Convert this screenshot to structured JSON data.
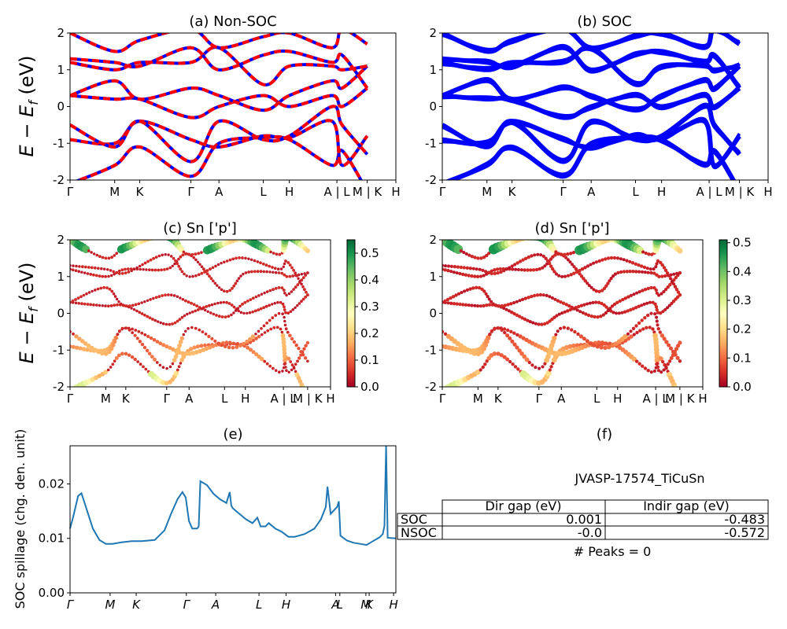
{
  "panels": {
    "a": {
      "title": "(a) Non-SOC",
      "ylabel": "E − E",
      "ylabel_sub": "f",
      "ylabel_unit": " (eV)"
    },
    "b": {
      "title": "(b) SOC"
    },
    "c": {
      "title": "(c)  Sn ['p']",
      "ylabel": "E − E",
      "ylabel_sub": "f",
      "ylabel_unit": " (eV)"
    },
    "d": {
      "title": "(d) Sn ['p']"
    },
    "e": {
      "title": "(e)",
      "ylabel": "SOC spillage (chg. den. unit)"
    },
    "f": {
      "title": "(f)"
    }
  },
  "kpath_labels": [
    "Γ",
    "M",
    "K",
    "Γ",
    "A",
    "L",
    "H",
    "A",
    "L",
    "M",
    "K",
    "H"
  ],
  "kpath_display": [
    "Γ",
    "M",
    "K",
    "Γ",
    "A",
    "L",
    "H",
    "A | L",
    "M | K",
    "H"
  ],
  "kpath_display_c": [
    "Γ",
    "M",
    "K",
    "Γ",
    "A",
    "L",
    "H",
    "A | L",
    "M | K",
    "H"
  ],
  "table": {
    "material": "JVASP-17574_TiCuSn",
    "headers": [
      "Dir gap (eV)",
      "Indir gap (eV)"
    ],
    "rows": [
      {
        "label": "SOC",
        "dir": "0.001",
        "indir": "-0.483"
      },
      {
        "label": "NSOC",
        "dir": "-0.0",
        "indir": "-0.572"
      }
    ],
    "peaks": "# Peaks = 0"
  },
  "colors": {
    "nonsoc_red": "#ff0000",
    "nonsoc_blue": "#0000ff",
    "soc_blue": "#0000ff",
    "spillage_line": "#1f77b4"
  },
  "chart_data": [
    {
      "type": "line",
      "panel": "a",
      "title": "(a) Non-SOC",
      "ylabel": "E − E_f (eV)",
      "ylim": [
        -2,
        2
      ],
      "yticks": [
        -2,
        -1,
        0,
        1,
        2
      ],
      "x_ticks": [
        "Γ",
        "M",
        "K",
        "Γ",
        "A",
        "L",
        "H",
        "A | L",
        "M | K",
        "H"
      ],
      "series": [
        {
          "values": [
            -2.1,
            -1.6,
            -1.1,
            -1.9,
            -1.0,
            -0.85,
            -0.9,
            -1.6,
            -1.2,
            -2.3
          ]
        },
        {
          "values": [
            -0.9,
            -1.0,
            -0.4,
            -0.9,
            -1.1,
            -0.8,
            -0.85,
            -0.4,
            -1.6,
            -0.8
          ]
        },
        {
          "values": [
            -0.5,
            -1.1,
            -0.4,
            -1.5,
            -0.4,
            -0.9,
            -0.8,
            0.0,
            -0.5,
            -1.3
          ]
        },
        {
          "values": [
            0.3,
            0.2,
            0.2,
            -0.3,
            0.0,
            0.3,
            0.0,
            0.3,
            0.0,
            0.5
          ]
        },
        {
          "values": [
            0.3,
            0.7,
            0.2,
            0.5,
            0.3,
            -0.1,
            0.3,
            0.7,
            0.5,
            1.1
          ]
        },
        {
          "values": [
            1.2,
            1.0,
            1.2,
            1.2,
            1.6,
            0.6,
            1.1,
            1.1,
            1.0,
            1.1
          ]
        },
        {
          "values": [
            1.3,
            1.2,
            1.1,
            1.6,
            1.0,
            1.4,
            1.5,
            1.2,
            1.4,
            0.5
          ]
        },
        {
          "values": [
            2.0,
            1.5,
            1.8,
            2.1,
            1.6,
            1.9,
            2.0,
            1.6,
            2.1,
            1.7
          ]
        }
      ]
    },
    {
      "type": "line",
      "panel": "b",
      "title": "(b) SOC",
      "ylim": [
        -2,
        2
      ],
      "yticks": [
        -2,
        -1,
        0,
        1,
        2
      ],
      "x_ticks": [
        "Γ",
        "M",
        "K",
        "Γ",
        "A",
        "L",
        "H",
        "A | L",
        "M | K",
        "H"
      ],
      "series": [
        {
          "values": [
            -2.1,
            -1.6,
            -1.1,
            -1.9,
            -1.0,
            -0.85,
            -0.9,
            -1.6,
            -1.2,
            -2.3
          ]
        },
        {
          "values": [
            -0.9,
            -1.0,
            -0.4,
            -0.9,
            -1.1,
            -0.8,
            -0.85,
            -0.4,
            -1.6,
            -0.8
          ]
        },
        {
          "values": [
            -0.5,
            -1.1,
            -0.4,
            -1.5,
            -0.4,
            -0.9,
            -0.8,
            0.0,
            -0.5,
            -1.3
          ]
        },
        {
          "values": [
            0.3,
            0.2,
            0.2,
            -0.3,
            0.0,
            0.3,
            0.0,
            0.3,
            0.0,
            0.5
          ]
        },
        {
          "values": [
            0.3,
            0.7,
            0.2,
            0.5,
            0.3,
            -0.1,
            0.3,
            0.7,
            0.5,
            1.1
          ]
        },
        {
          "values": [
            1.2,
            1.0,
            1.2,
            1.2,
            1.6,
            0.6,
            1.1,
            1.1,
            1.0,
            1.1
          ]
        },
        {
          "values": [
            1.3,
            1.2,
            1.1,
            1.6,
            1.0,
            1.4,
            1.5,
            1.2,
            1.4,
            0.5
          ]
        },
        {
          "values": [
            2.0,
            1.5,
            1.8,
            2.1,
            1.6,
            1.9,
            2.0,
            1.6,
            2.1,
            1.7
          ]
        }
      ]
    },
    {
      "type": "scatter",
      "panel": "c",
      "title": "(c)  Sn ['p']",
      "ylabel": "E − E_f (eV)",
      "ylim": [
        -2,
        2
      ],
      "yticks": [
        -2,
        -1,
        0,
        1,
        2
      ],
      "colorbar_ticks": [
        "0.0",
        "0.1",
        "0.2",
        "0.3",
        "0.4",
        "0.5"
      ],
      "colorbar_range": [
        0,
        0.55
      ],
      "x_ticks": [
        "Γ",
        "M",
        "K",
        "Γ",
        "A",
        "L",
        "H",
        "A | L",
        "M | K",
        "H"
      ]
    },
    {
      "type": "scatter",
      "panel": "d",
      "title": "(d) Sn ['p']",
      "ylim": [
        -2,
        2
      ],
      "yticks": [
        -2,
        -1,
        0,
        1,
        2
      ],
      "colorbar_ticks": [
        "0.0",
        "0.1",
        "0.2",
        "0.3",
        "0.4",
        "0.5"
      ],
      "colorbar_range": [
        0,
        0.51
      ],
      "x_ticks": [
        "Γ",
        "M",
        "K",
        "Γ",
        "A",
        "L",
        "H",
        "A | L",
        "M | K",
        "H"
      ]
    },
    {
      "type": "line",
      "panel": "e",
      "title": "(e)",
      "ylabel": "SOC spillage (chg. den. unit)",
      "ylim": [
        0,
        0.027
      ],
      "yticks": [
        0.0,
        0.01,
        0.02
      ],
      "ytick_labels": [
        "0.00",
        "0.01",
        "0.02"
      ],
      "x_ticks": [
        "Γ",
        "M",
        "K",
        "Γ",
        "A",
        "L",
        "H",
        "A",
        "L",
        "M",
        "K",
        "H"
      ],
      "x_tick_pos": [
        0,
        0.123,
        0.203,
        0.357,
        0.447,
        0.58,
        0.663,
        0.815,
        0.828,
        0.908,
        0.918,
        0.993
      ],
      "x": [
        0.0,
        0.01,
        0.025,
        0.035,
        0.05,
        0.07,
        0.09,
        0.11,
        0.13,
        0.16,
        0.19,
        0.22,
        0.26,
        0.29,
        0.31,
        0.33,
        0.345,
        0.355,
        0.365,
        0.375,
        0.39,
        0.395,
        0.4,
        0.42,
        0.44,
        0.46,
        0.48,
        0.49,
        0.495,
        0.5,
        0.52,
        0.54,
        0.56,
        0.575,
        0.585,
        0.6,
        0.61,
        0.63,
        0.65,
        0.67,
        0.69,
        0.72,
        0.75,
        0.77,
        0.785,
        0.79,
        0.8,
        0.82,
        0.825,
        0.83,
        0.85,
        0.87,
        0.89,
        0.91,
        0.93,
        0.95,
        0.96,
        0.965,
        0.97,
        0.975,
        1.0
      ],
      "values": [
        0.0118,
        0.014,
        0.0178,
        0.0183,
        0.0155,
        0.0118,
        0.0097,
        0.009,
        0.009,
        0.0093,
        0.0095,
        0.0095,
        0.0097,
        0.0115,
        0.0145,
        0.0172,
        0.0185,
        0.0175,
        0.0132,
        0.0118,
        0.0118,
        0.0122,
        0.0205,
        0.0198,
        0.0182,
        0.0172,
        0.0165,
        0.0185,
        0.016,
        0.0155,
        0.0145,
        0.0135,
        0.0128,
        0.0138,
        0.0122,
        0.0122,
        0.0128,
        0.0118,
        0.0112,
        0.0103,
        0.0103,
        0.0108,
        0.0118,
        0.0135,
        0.0158,
        0.0195,
        0.0145,
        0.0158,
        0.0168,
        0.0105,
        0.0096,
        0.0092,
        0.009,
        0.0088,
        0.0095,
        0.0102,
        0.0108,
        0.0123,
        0.027,
        0.0101,
        0.01
      ]
    }
  ]
}
